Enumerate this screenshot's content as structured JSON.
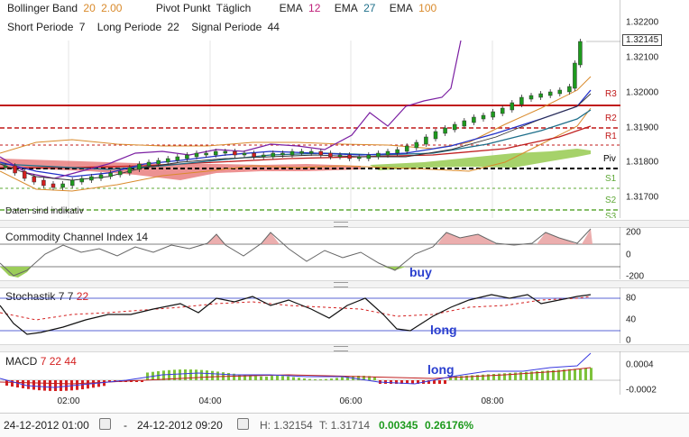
{
  "legend_row1": {
    "bb_label": "Bollinger Band",
    "bb_period": "20",
    "bb_dev": "2.00",
    "pivot_label": "Pivot Punkt",
    "pivot_mode": "Täglich",
    "ema1_label": "EMA",
    "ema1_val": "12",
    "ema2_label": "EMA",
    "ema2_val": "27",
    "ema3_label": "EMA",
    "ema3_val": "100"
  },
  "legend_row2": {
    "short_label": "Short Periode",
    "short_val": "7",
    "long_label": "Long Periode",
    "long_val": "22",
    "signal_label": "Signal Periode",
    "signal_val": "44"
  },
  "price_axis": [
    "1.32200",
    "1.32100",
    "1.32000",
    "1.31900",
    "1.31800",
    "1.31700"
  ],
  "current_price": "1.32145",
  "pivot_levels": {
    "r3": "R3",
    "r2": "R2",
    "r1": "R1",
    "piv": "Piv",
    "s1": "S1",
    "s2": "S2",
    "s3": "S3"
  },
  "disclaimer": "Daten sind indikativ",
  "cci": {
    "label": "Commodity Channel Index",
    "period": "14",
    "axis": [
      "200",
      "0",
      "-200"
    ],
    "hint": "buy"
  },
  "stoch": {
    "label": "Stochastik",
    "k": "7",
    "d": "7",
    "slow": "22",
    "axis": [
      "80",
      "40",
      "0"
    ],
    "hint": "long"
  },
  "macd": {
    "label": "MACD",
    "fast": "7",
    "slow": "22",
    "signal": "44",
    "axis": [
      "0.0004",
      "-0.0002"
    ],
    "hint": "long"
  },
  "time_axis": [
    "02:00",
    "04:00",
    "06:00",
    "08:00"
  ],
  "status": {
    "from": "24-12-2012 01:00",
    "dash": "-",
    "to": "24-12-2012 09:20",
    "high": "H: 1.32154",
    "low": "T: 1.31714",
    "change": "0.00345",
    "change_pct": "0.26176%"
  },
  "colors": {
    "up": "#1d9a1d",
    "down": "#d42020",
    "bb": "#d98a2b",
    "ema12": "#2230c8",
    "ema27": "#1e6f8a",
    "ema100": "#c02020",
    "cloud_green": "#9ccd5a",
    "cloud_red": "#e07070",
    "macd_line": "#3a3ae0"
  }
}
